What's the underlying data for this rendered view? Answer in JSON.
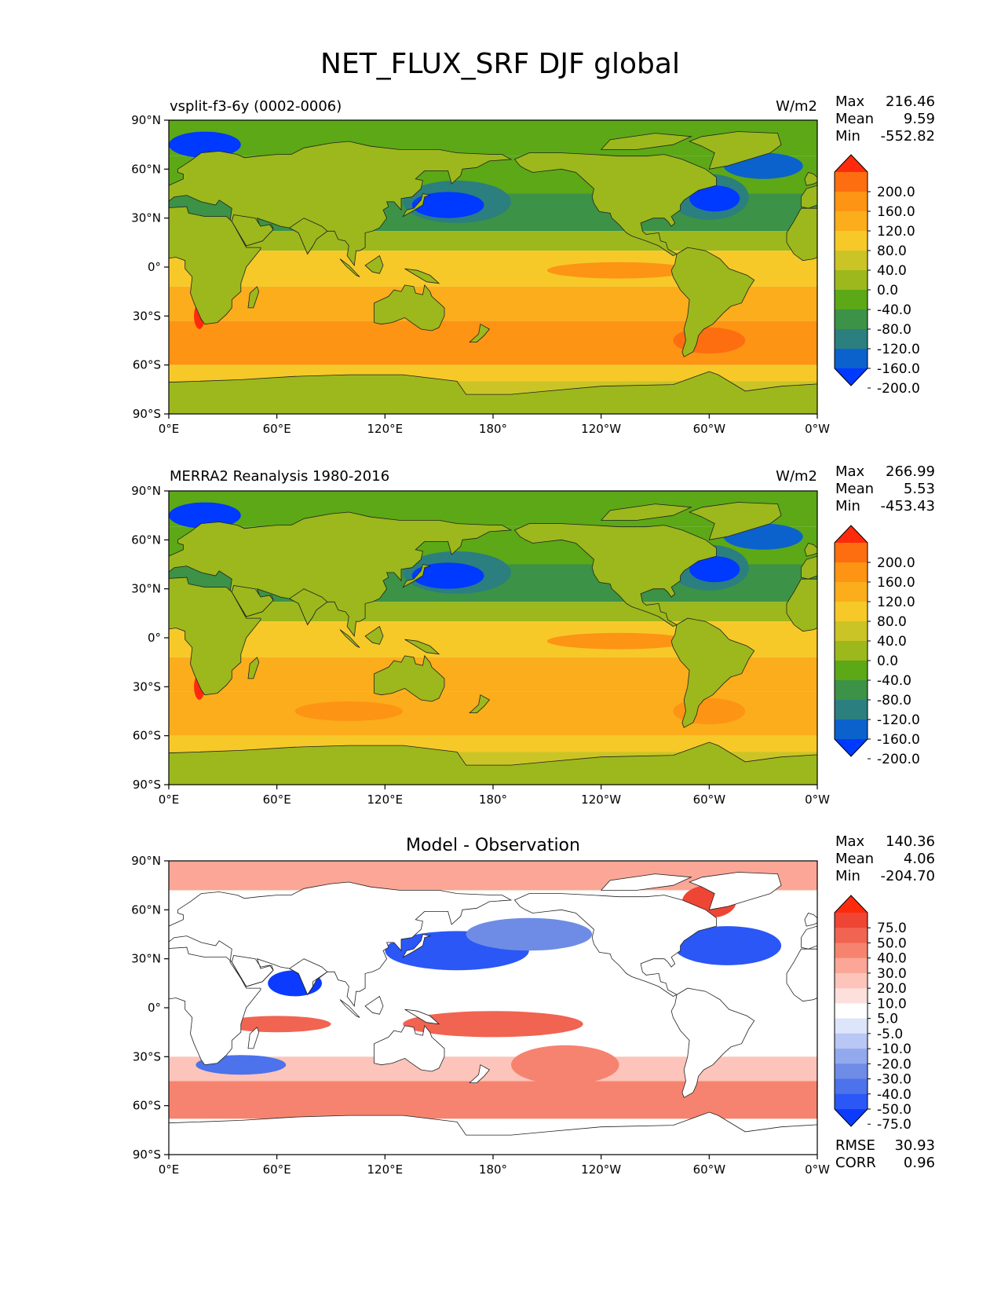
{
  "figure": {
    "title": "NET_FLUX_SRF DJF global"
  },
  "colors": {
    "abs_scale": [
      "#0039ff",
      "#0b62cd",
      "#2b7f7f",
      "#3c9246",
      "#5ca817",
      "#9cb81c",
      "#cbc426",
      "#f6c928",
      "#fbad1c",
      "#fd9414",
      "#fc6e10",
      "#ff2a0b"
    ],
    "diff_scale": [
      "#0c3bff",
      "#2a57f5",
      "#4c72ec",
      "#6e8ce6",
      "#93a9ee",
      "#b8c7f4",
      "#dde5fb",
      "#ffffff",
      "#fde0db",
      "#fcc4ba",
      "#fba696",
      "#f6836f",
      "#f06451",
      "#ee4534",
      "#ff2a0b"
    ]
  },
  "chart_data": [
    {
      "type": "heatmap",
      "title": "",
      "left_title": "vsplit-f3-6y (0002-0006)",
      "units": "W/m2",
      "stats": {
        "max_label": "Max",
        "max": "216.46",
        "mean_label": "Mean",
        "mean": "9.59",
        "min_label": "Min",
        "min": "-552.82"
      },
      "x_ticks": [
        "0°E",
        "60°E",
        "120°E",
        "180°",
        "120°W",
        "60°W",
        "0°W"
      ],
      "y_ticks": [
        "90°N",
        "60°N",
        "30°N",
        "0°",
        "30°S",
        "60°S",
        "90°S"
      ],
      "xlim": [
        0,
        360
      ],
      "ylim": [
        -90,
        90
      ],
      "colorbar_levels": [
        "200.0",
        "160.0",
        "120.0",
        "80.0",
        "40.0",
        "0.0",
        "-40.0",
        "-80.0",
        "-120.0",
        "-160.0",
        "-200.0"
      ],
      "colorbar_extend": "both"
    },
    {
      "type": "heatmap",
      "title": "",
      "left_title": "MERRA2 Reanalysis 1980-2016",
      "units": "W/m2",
      "stats": {
        "max_label": "Max",
        "max": "266.99",
        "mean_label": "Mean",
        "mean": "5.53",
        "min_label": "Min",
        "min": "-453.43"
      },
      "x_ticks": [
        "0°E",
        "60°E",
        "120°E",
        "180°",
        "120°W",
        "60°W",
        "0°W"
      ],
      "y_ticks": [
        "90°N",
        "60°N",
        "30°N",
        "0°",
        "30°S",
        "60°S",
        "90°S"
      ],
      "xlim": [
        0,
        360
      ],
      "ylim": [
        -90,
        90
      ],
      "colorbar_levels": [
        "200.0",
        "160.0",
        "120.0",
        "80.0",
        "40.0",
        "0.0",
        "-40.0",
        "-80.0",
        "-120.0",
        "-160.0",
        "-200.0"
      ],
      "colorbar_extend": "both"
    },
    {
      "type": "heatmap",
      "title": "Model - Observation",
      "left_title": "",
      "units": "",
      "stats": {
        "max_label": "Max",
        "max": "140.36",
        "mean_label": "Mean",
        "mean": "4.06",
        "min_label": "Min",
        "min": "-204.70"
      },
      "x_ticks": [
        "0°E",
        "60°E",
        "120°E",
        "180°",
        "120°W",
        "60°W",
        "0°W"
      ],
      "y_ticks": [
        "90°N",
        "60°N",
        "30°N",
        "0°",
        "30°S",
        "60°S",
        "90°S"
      ],
      "xlim": [
        0,
        360
      ],
      "ylim": [
        -90,
        90
      ],
      "colorbar_levels": [
        "75.0",
        "50.0",
        "40.0",
        "30.0",
        "20.0",
        "10.0",
        "5.0",
        "-5.0",
        "-10.0",
        "-20.0",
        "-30.0",
        "-40.0",
        "-50.0",
        "-75.0"
      ],
      "colorbar_extend": "both",
      "metrics": {
        "rmse_label": "RMSE",
        "rmse": "30.93",
        "corr_label": "CORR",
        "corr": "0.96"
      }
    }
  ]
}
